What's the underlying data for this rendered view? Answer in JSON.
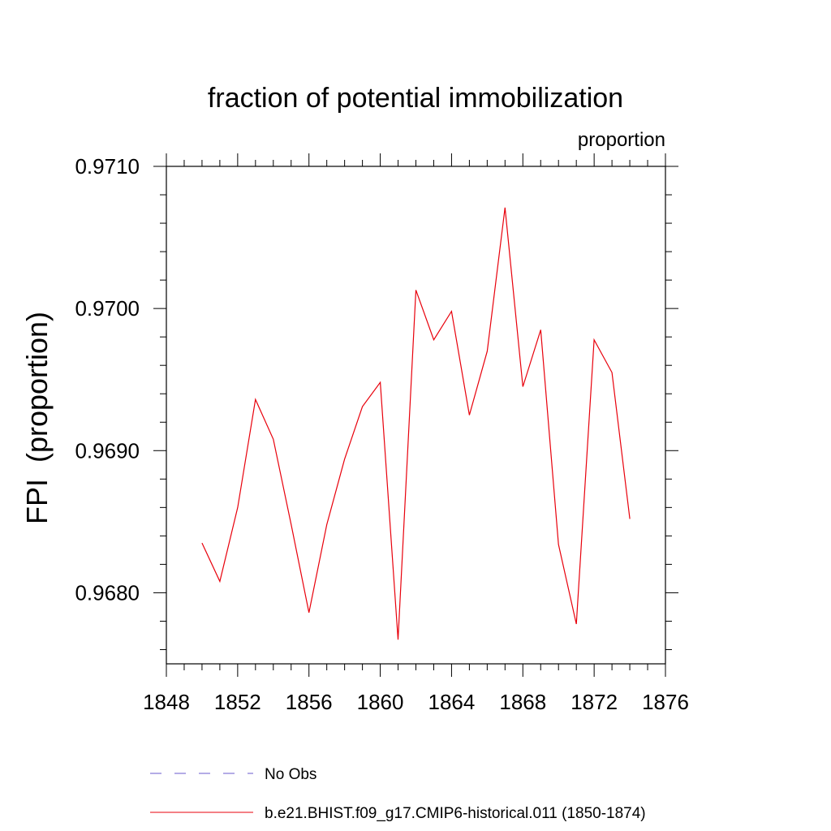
{
  "chart_data": {
    "type": "line",
    "title": "fraction of potential immobilization",
    "units_label": "proportion",
    "ylabel": "FPI  (proportion)",
    "xlabel": "",
    "xlim": [
      1848,
      1876
    ],
    "ylim": [
      0.9675,
      0.971
    ],
    "xticks": [
      1848,
      1852,
      1856,
      1860,
      1864,
      1868,
      1872,
      1876
    ],
    "yticks": [
      0.968,
      0.969,
      0.97,
      0.971
    ],
    "ytick_labels": [
      "0.9680",
      "0.9690",
      "0.9700",
      "0.9710"
    ],
    "grid": false,
    "legend_position": "bottom",
    "series": [
      {
        "name": "b.e21.BHIST.f09_g17.CMIP6-historical.011 (1850-1874)",
        "color": "#e8000b",
        "style": "solid",
        "x": [
          1850,
          1851,
          1852,
          1853,
          1854,
          1855,
          1856,
          1857,
          1858,
          1859,
          1860,
          1861,
          1862,
          1863,
          1864,
          1865,
          1866,
          1867,
          1868,
          1869,
          1870,
          1871,
          1872,
          1873,
          1874
        ],
        "y": [
          0.96835,
          0.96808,
          0.9686,
          0.96936,
          0.96908,
          0.96848,
          0.96786,
          0.96848,
          0.96894,
          0.96931,
          0.96948,
          0.96767,
          0.97013,
          0.96978,
          0.96998,
          0.96925,
          0.9697,
          0.97071,
          0.96945,
          0.96985,
          0.96834,
          0.96778,
          0.96978,
          0.96955,
          0.96852
        ]
      }
    ],
    "legend": [
      {
        "label": "No Obs",
        "color": "#6a5acd",
        "style": "dashed"
      },
      {
        "label": "b.e21.BHIST.f09_g17.CMIP6-historical.011 (1850-1874)",
        "color": "#e8000b",
        "style": "solid"
      }
    ]
  }
}
